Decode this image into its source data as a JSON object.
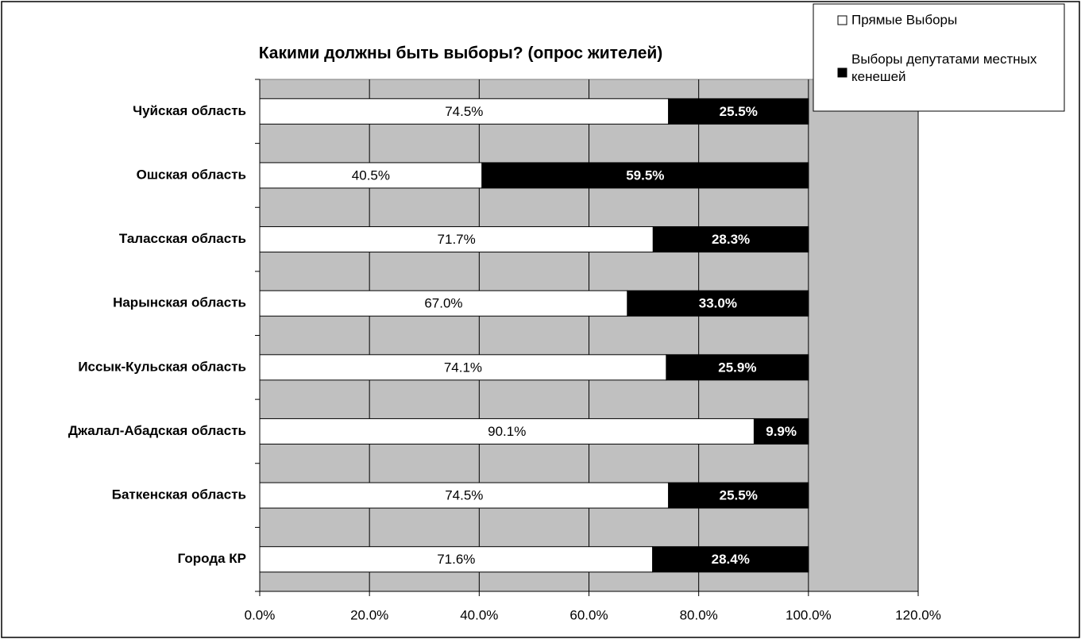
{
  "chart_data": {
    "type": "stacked_barh",
    "title": "Какими должны быть выборы? (опрос жителей)",
    "categories": [
      "Чуйская область",
      "Ошская область",
      "Таласская область",
      "Нарынская область",
      "Иссык-Кульская область",
      "Джалал-Абадская область",
      "Баткенская область",
      "Города КР"
    ],
    "series": [
      {
        "name": "Прямые Выборы",
        "color": "#ffffff",
        "values": [
          74.5,
          40.5,
          71.7,
          67.0,
          74.1,
          90.1,
          74.5,
          71.6
        ],
        "value_labels": [
          "74.5%",
          "40.5%",
          "71.7%",
          "67.0%",
          "74.1%",
          "90.1%",
          "74.5%",
          "71.6%"
        ]
      },
      {
        "name": "Выборы депутатами местных кенешей",
        "color": "#000000",
        "values": [
          25.5,
          59.5,
          28.3,
          33.0,
          25.9,
          9.9,
          25.5,
          28.4
        ],
        "value_labels": [
          "25.5%",
          "59.5%",
          "28.3%",
          "33.0%",
          "25.9%",
          "9.9%",
          "25.5%",
          "28.4%"
        ]
      }
    ],
    "xlim": [
      0,
      120
    ],
    "xticks": [
      {
        "value": 0,
        "label": "0.0%"
      },
      {
        "value": 20,
        "label": "20.0%"
      },
      {
        "value": 40,
        "label": "40.0%"
      },
      {
        "value": 60,
        "label": "60.0%"
      },
      {
        "value": 80,
        "label": "80.0%"
      },
      {
        "value": 100,
        "label": "100.0%"
      },
      {
        "value": 120,
        "label": "120.0%"
      }
    ],
    "grid": true,
    "legend": "top-right",
    "plot_background": "#c0c0c0"
  }
}
